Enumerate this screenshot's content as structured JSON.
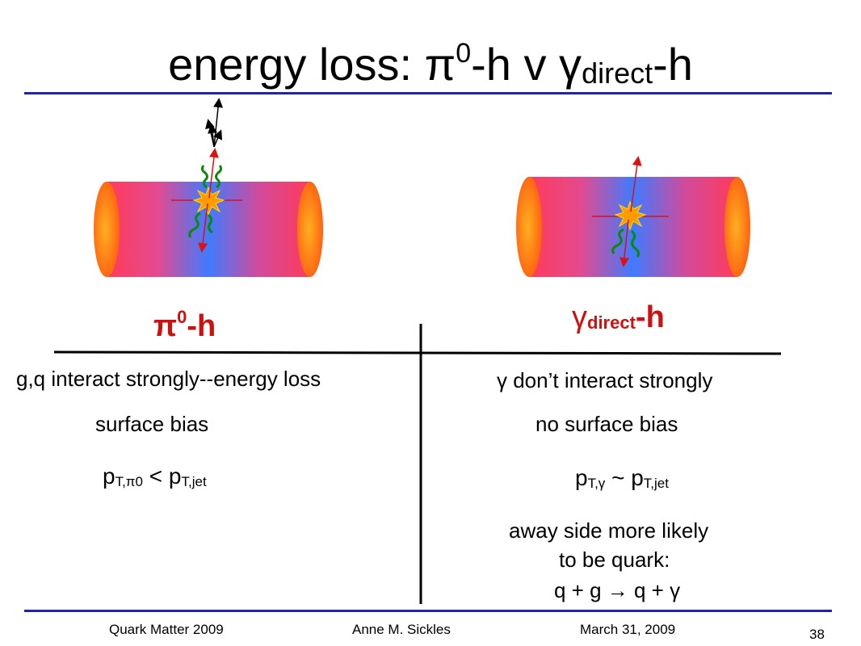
{
  "title": {
    "prefix": "energy loss: π",
    "sup0": "0",
    "middle": "-h v γ",
    "sub_direct": "direct",
    "suffix": "-h"
  },
  "left": {
    "heading_main": "π",
    "heading_sup": "0",
    "heading_suffix": "-h",
    "line1": "g,q interact strongly--energy loss",
    "line2": "surface bias",
    "pt_p1": "p",
    "pt_sub1": "T,π0",
    "pt_rel": " < p",
    "pt_sub2": "T,jet"
  },
  "right": {
    "heading_main": "γ",
    "heading_sub": "direct",
    "heading_suffix": "-h",
    "line1": "γ don’t interact strongly",
    "line2": "no surface bias",
    "pt_p1": "p",
    "pt_sub1": "T,γ",
    "pt_rel": " ~ p",
    "pt_sub2": "T,jet",
    "note1": "away side more likely",
    "note2": "to be quark:",
    "note3": "q + g → q + γ"
  },
  "footer": {
    "conference": "Quark Matter 2009",
    "author": "Anne M. Sickles",
    "date": "March 31, 2009",
    "page": "38"
  },
  "colors": {
    "rule": "#2323a8",
    "heading": "#cc1111",
    "cylinder_edge": "#ff3b3b",
    "cylinder_center": "#3f7bff",
    "cap": "#ff7a1a",
    "gluon": "#0a8a0a",
    "arrow": "#dd1111",
    "burst": "#ff9a00"
  }
}
